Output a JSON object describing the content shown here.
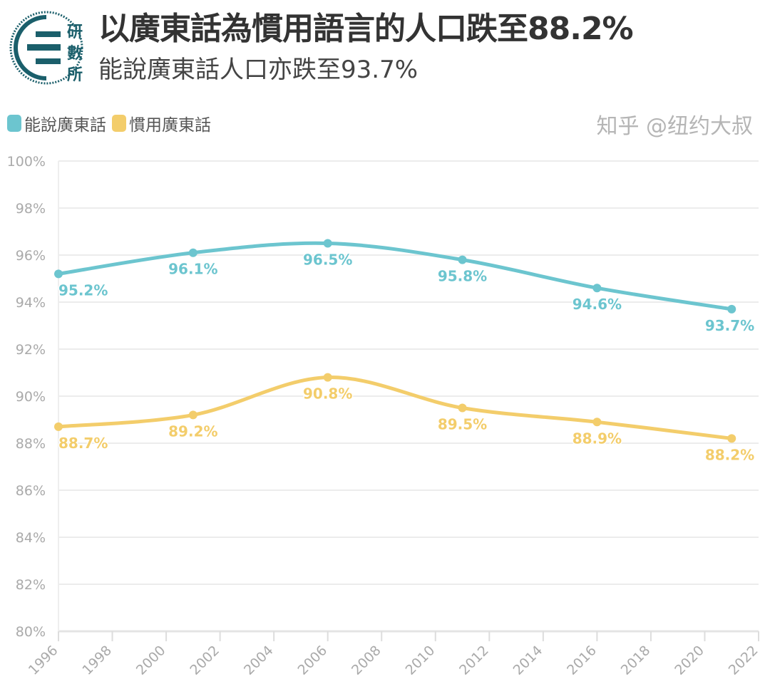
{
  "header": {
    "title": "以廣東話為慣用語言的人口跌至88.2%",
    "subtitle": "能說廣東話人口亦跌至93.7%",
    "logo_text": "研數所"
  },
  "watermark": "知乎 @纽约大叔",
  "chart_data": {
    "type": "line",
    "x": [
      1996,
      2001,
      2006,
      2011,
      2016,
      2021
    ],
    "series": [
      {
        "name": "能說廣東話",
        "color": "#6cc5cf",
        "values": [
          95.2,
          96.1,
          96.5,
          95.8,
          94.6,
          93.7
        ],
        "labels": [
          "95.2%",
          "96.1%",
          "96.5%",
          "95.8%",
          "94.6%",
          "93.7%"
        ]
      },
      {
        "name": "慣用廣東話",
        "color": "#f3cd6b",
        "values": [
          88.7,
          89.2,
          90.8,
          89.5,
          88.9,
          88.2
        ],
        "labels": [
          "88.7%",
          "89.2%",
          "90.8%",
          "89.5%",
          "88.9%",
          "88.2%"
        ]
      }
    ],
    "xlim": [
      1996,
      2022
    ],
    "ylim": [
      80,
      100
    ],
    "x_ticks": [
      "1996",
      "1998",
      "2000",
      "2002",
      "2004",
      "2006",
      "2008",
      "2010",
      "2012",
      "2014",
      "2016",
      "2018",
      "2020",
      "2022"
    ],
    "y_ticks": [
      "80%",
      "82%",
      "84%",
      "86%",
      "88%",
      "90%",
      "92%",
      "94%",
      "96%",
      "98%",
      "100%"
    ],
    "grid": true,
    "legend": "top-left"
  }
}
